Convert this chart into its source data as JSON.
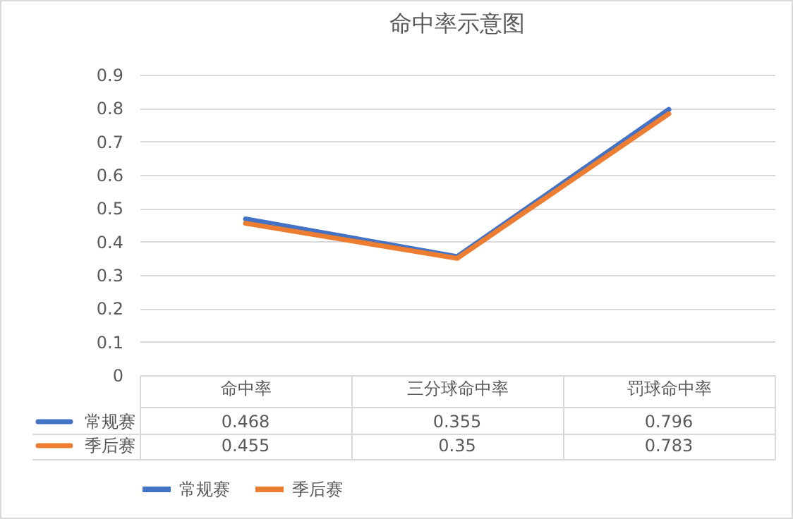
{
  "chart_data": {
    "type": "line",
    "title": "命中率示意图",
    "categories": [
      "命中率",
      "三分球命中率",
      "罚球命中率"
    ],
    "series": [
      {
        "name": "常规赛",
        "color": "#4472c4",
        "values": [
          0.468,
          0.355,
          0.796
        ]
      },
      {
        "name": "季后赛",
        "color": "#ed7d31",
        "values": [
          0.455,
          0.35,
          0.783
        ]
      }
    ],
    "ylim": [
      0,
      0.9
    ],
    "yticks": [
      0,
      0.1,
      0.2,
      0.3,
      0.4,
      0.5,
      0.6,
      0.7,
      0.8,
      0.9
    ],
    "grid": "y",
    "legend": "bottom",
    "data_labels": true
  }
}
